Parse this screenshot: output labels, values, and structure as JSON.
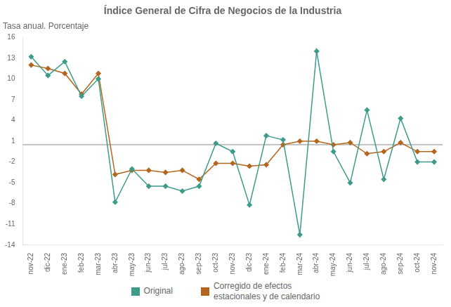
{
  "chart_data": {
    "type": "line",
    "title": "Índice General de Cifra de Negocios de la Industria",
    "subtitle": "Tasa anual. Porcentaje",
    "categories": [
      "nov-22",
      "dic-22",
      "ene-23",
      "feb-23",
      "mar-23",
      "abr-23",
      "may-23",
      "jun-23",
      "jul-23",
      "ago-23",
      "sep-23",
      "oct-23",
      "nov-23",
      "dic-23",
      "ene-24",
      "feb-24",
      "mar-24",
      "abr-24",
      "may-24",
      "jun-24",
      "jul-24",
      "ago-24",
      "sep-24",
      "oct-24",
      "nov-24"
    ],
    "series": [
      {
        "name": "Original",
        "color": "#3d9b8a",
        "marker": "diamond",
        "values": [
          13.2,
          10.5,
          12.5,
          7.5,
          10.0,
          -7.8,
          -3.0,
          -5.5,
          -5.5,
          -6.2,
          -5.5,
          0.7,
          -0.5,
          -8.2,
          1.8,
          1.2,
          -12.5,
          14.0,
          -0.5,
          -5.0,
          5.5,
          -4.5,
          4.3,
          -2.0,
          -2.0
        ]
      },
      {
        "name": "Corregido de efectos\nestacionales y de calendario",
        "color": "#b5651d",
        "marker": "diamond",
        "values": [
          12.0,
          11.5,
          10.8,
          7.8,
          10.8,
          -3.8,
          -3.2,
          -3.2,
          -3.5,
          -3.2,
          -4.5,
          -2.2,
          -2.2,
          -2.6,
          -2.4,
          0.5,
          1.0,
          1.0,
          0.5,
          0.8,
          -0.8,
          -0.5,
          0.8,
          -0.5,
          -0.5
        ]
      }
    ],
    "hline": {
      "y": 0.5,
      "color": "#888888"
    },
    "ylim": [
      -14,
      16
    ],
    "yticks": [
      -14,
      -11,
      -8,
      -5,
      -2,
      1,
      4,
      7,
      10,
      13,
      16
    ],
    "grid": false,
    "legend": "bottom"
  }
}
